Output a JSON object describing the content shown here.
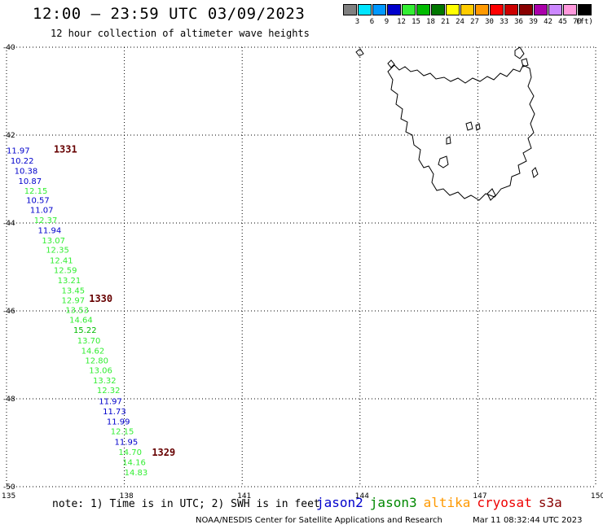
{
  "header": {
    "title": "12:00 – 23:59 UTC 03/09/2023",
    "subtitle": "12 hour collection of altimeter wave heights"
  },
  "legend": {
    "unit": "(ft)",
    "bins": [
      {
        "label": "3",
        "color": "#808080"
      },
      {
        "label": "6",
        "color": "#00e5ff"
      },
      {
        "label": "9",
        "color": "#0099ff"
      },
      {
        "label": "12",
        "color": "#0000cc"
      },
      {
        "label": "15",
        "color": "#33ee33"
      },
      {
        "label": "18",
        "color": "#00bb00"
      },
      {
        "label": "21",
        "color": "#007700"
      },
      {
        "label": "24",
        "color": "#ffff00"
      },
      {
        "label": "27",
        "color": "#ffcc00"
      },
      {
        "label": "30",
        "color": "#ff9900"
      },
      {
        "label": "33",
        "color": "#ff0000"
      },
      {
        "label": "36",
        "color": "#cc0000"
      },
      {
        "label": "39",
        "color": "#880000"
      },
      {
        "label": "42",
        "color": "#aa00aa"
      },
      {
        "label": "45",
        "color": "#cc88ff"
      },
      {
        "label": "70",
        "color": "#ff99dd"
      },
      {
        "label": "",
        "color": "#000000"
      }
    ]
  },
  "map": {
    "lat_labels": [
      "-40",
      "-42",
      "-44",
      "-46",
      "-48",
      "-50"
    ],
    "lon_labels": [
      "135",
      "138",
      "141",
      "144",
      "147",
      "150"
    ],
    "lat_range": [
      -50,
      -40
    ],
    "lon_range": [
      135,
      150
    ],
    "grid": "dotted"
  },
  "passes": [
    {
      "label": "1331",
      "lat": -42.4,
      "lon": 136.2,
      "color": "#660000"
    },
    {
      "label": "1330",
      "lat": -45.8,
      "lon": 137.1,
      "color": "#660000"
    },
    {
      "label": "1329",
      "lat": -49.3,
      "lon": 138.7,
      "color": "#660000"
    }
  ],
  "observations": [
    {
      "value": "11.97",
      "lat": -42.42,
      "lon": 135.0,
      "color": "#0000cc"
    },
    {
      "value": "10.22",
      "lat": -42.65,
      "lon": 135.1,
      "color": "#0000cc"
    },
    {
      "value": "10.38",
      "lat": -42.88,
      "lon": 135.2,
      "color": "#0000cc"
    },
    {
      "value": "10.87",
      "lat": -43.11,
      "lon": 135.3,
      "color": "#0000cc"
    },
    {
      "value": "12.15",
      "lat": -43.33,
      "lon": 135.45,
      "color": "#33ee33"
    },
    {
      "value": "10.57",
      "lat": -43.55,
      "lon": 135.5,
      "color": "#0000cc"
    },
    {
      "value": "11.07",
      "lat": -43.77,
      "lon": 135.6,
      "color": "#0000cc"
    },
    {
      "value": "12.37",
      "lat": -44.0,
      "lon": 135.7,
      "color": "#33ee33"
    },
    {
      "value": "11.94",
      "lat": -44.23,
      "lon": 135.8,
      "color": "#0000cc"
    },
    {
      "value": "13.07",
      "lat": -44.46,
      "lon": 135.9,
      "color": "#33ee33"
    },
    {
      "value": "12.35",
      "lat": -44.68,
      "lon": 136.0,
      "color": "#33ee33"
    },
    {
      "value": "12.41",
      "lat": -44.92,
      "lon": 136.1,
      "color": "#33ee33"
    },
    {
      "value": "12.59",
      "lat": -45.14,
      "lon": 136.2,
      "color": "#33ee33"
    },
    {
      "value": "13.21",
      "lat": -45.37,
      "lon": 136.3,
      "color": "#33ee33"
    },
    {
      "value": "13.45",
      "lat": -45.6,
      "lon": 136.4,
      "color": "#33ee33"
    },
    {
      "value": "12.97",
      "lat": -45.82,
      "lon": 136.4,
      "color": "#33ee33"
    },
    {
      "value": "13.53",
      "lat": -46.05,
      "lon": 136.5,
      "color": "#33ee33"
    },
    {
      "value": "14.64",
      "lat": -46.27,
      "lon": 136.6,
      "color": "#33ee33"
    },
    {
      "value": "15.22",
      "lat": -46.5,
      "lon": 136.7,
      "color": "#00bb00"
    },
    {
      "value": "13.70",
      "lat": -46.74,
      "lon": 136.8,
      "color": "#33ee33"
    },
    {
      "value": "14.62",
      "lat": -46.97,
      "lon": 136.9,
      "color": "#33ee33"
    },
    {
      "value": "12.80",
      "lat": -47.19,
      "lon": 137.0,
      "color": "#33ee33"
    },
    {
      "value": "13.06",
      "lat": -47.42,
      "lon": 137.1,
      "color": "#33ee33"
    },
    {
      "value": "13.32",
      "lat": -47.65,
      "lon": 137.2,
      "color": "#33ee33"
    },
    {
      "value": "12.32",
      "lat": -47.87,
      "lon": 137.3,
      "color": "#33ee33"
    },
    {
      "value": "11.97",
      "lat": -48.12,
      "lon": 137.35,
      "color": "#0000cc"
    },
    {
      "value": "11.73",
      "lat": -48.35,
      "lon": 137.45,
      "color": "#0000cc"
    },
    {
      "value": "11.99",
      "lat": -48.58,
      "lon": 137.55,
      "color": "#0000cc"
    },
    {
      "value": "12.15",
      "lat": -48.81,
      "lon": 137.65,
      "color": "#33ee33"
    },
    {
      "value": "11.95",
      "lat": -49.05,
      "lon": 137.75,
      "color": "#0000cc"
    },
    {
      "value": "14.70",
      "lat": -49.28,
      "lon": 137.85,
      "color": "#33ee33"
    },
    {
      "value": "14.16",
      "lat": -49.51,
      "lon": 137.95,
      "color": "#33ee33"
    },
    {
      "value": "14.83",
      "lat": -49.74,
      "lon": 138.0,
      "color": "#33ee33"
    }
  ],
  "footer": {
    "note": "note:  1) Time is in UTC; 2) SWH is in feet",
    "satellites": [
      {
        "name": "jason2",
        "color": "#0000cc"
      },
      {
        "name": "jason3",
        "color": "#008800"
      },
      {
        "name": "altika",
        "color": "#ff9900"
      },
      {
        "name": "cryosat",
        "color": "#ee0000"
      },
      {
        "name": "s3a",
        "color": "#880000"
      }
    ],
    "credit": "NOAA/NESDIS Center for Satellite Applications and Research",
    "timestamp": "Mar 11 08:32:44 UTC 2023"
  }
}
